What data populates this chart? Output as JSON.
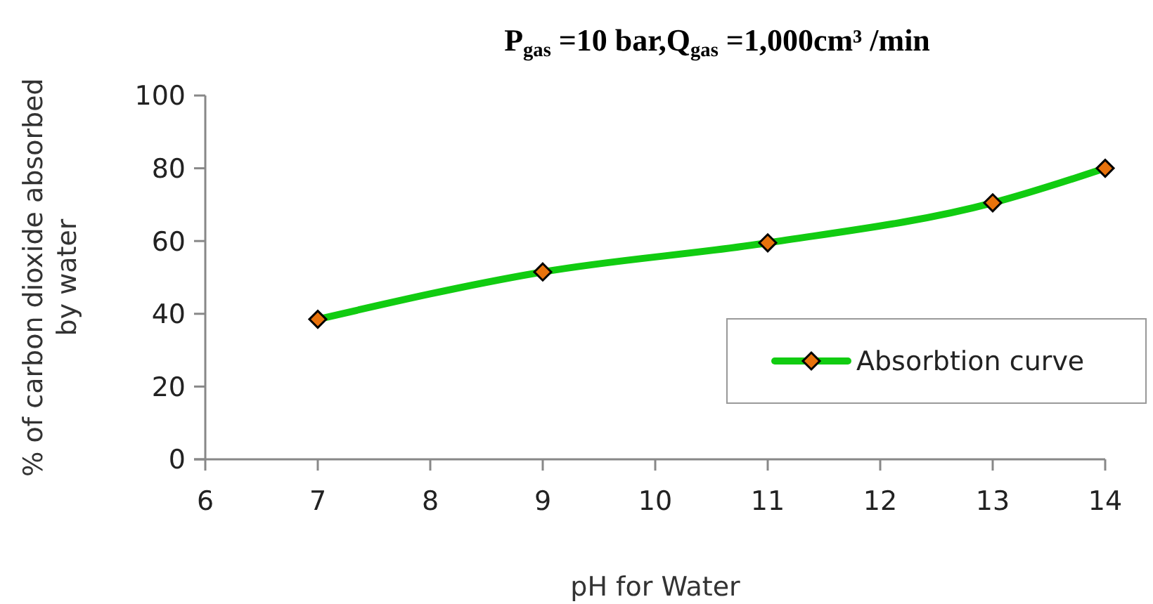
{
  "chart_data": {
    "type": "line",
    "title": "P$_{gas}$ =10 bar,Q$_{gas}$ =1,000cm³ /min",
    "xlabel": "pH for Water",
    "ylabel": "% of carbon dioxide absorbed by water",
    "x": [
      7,
      9,
      11,
      13,
      14
    ],
    "series": [
      {
        "name": "Absorbtion curve",
        "color": "#11cc11",
        "values": [
          38.5,
          51.5,
          59.5,
          70.5,
          80
        ]
      }
    ],
    "xlim": [
      6,
      14
    ],
    "xticks": [
      6,
      7,
      8,
      9,
      10,
      11,
      12,
      13,
      14
    ],
    "ylim": [
      0,
      100
    ],
    "yticks": [
      0,
      20,
      40,
      60,
      80,
      100
    ],
    "grid": false,
    "legend": "right",
    "marker": "diamond",
    "line_style": "solid"
  }
}
